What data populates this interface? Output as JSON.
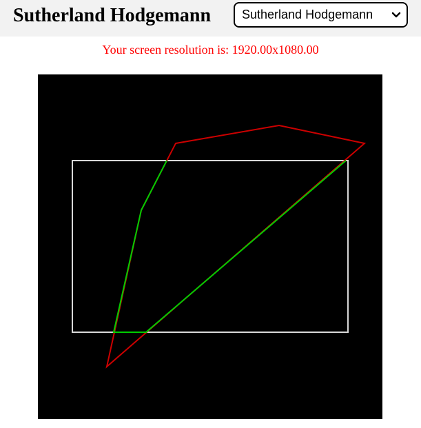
{
  "header": {
    "title": "Sutherland Hodgemann",
    "algorithm_select": {
      "selected": "Sutherland Hodgemann",
      "icon": "chevron-down-icon"
    }
  },
  "resolution": {
    "text": "Your screen resolution is: 1920.00x1080.00"
  },
  "canvas": {
    "background": "#000000",
    "clip_window_color": "#d9d9d9",
    "subject_polygon_color": "#cc0000",
    "clipped_polygon_color": "#00cc00"
  }
}
